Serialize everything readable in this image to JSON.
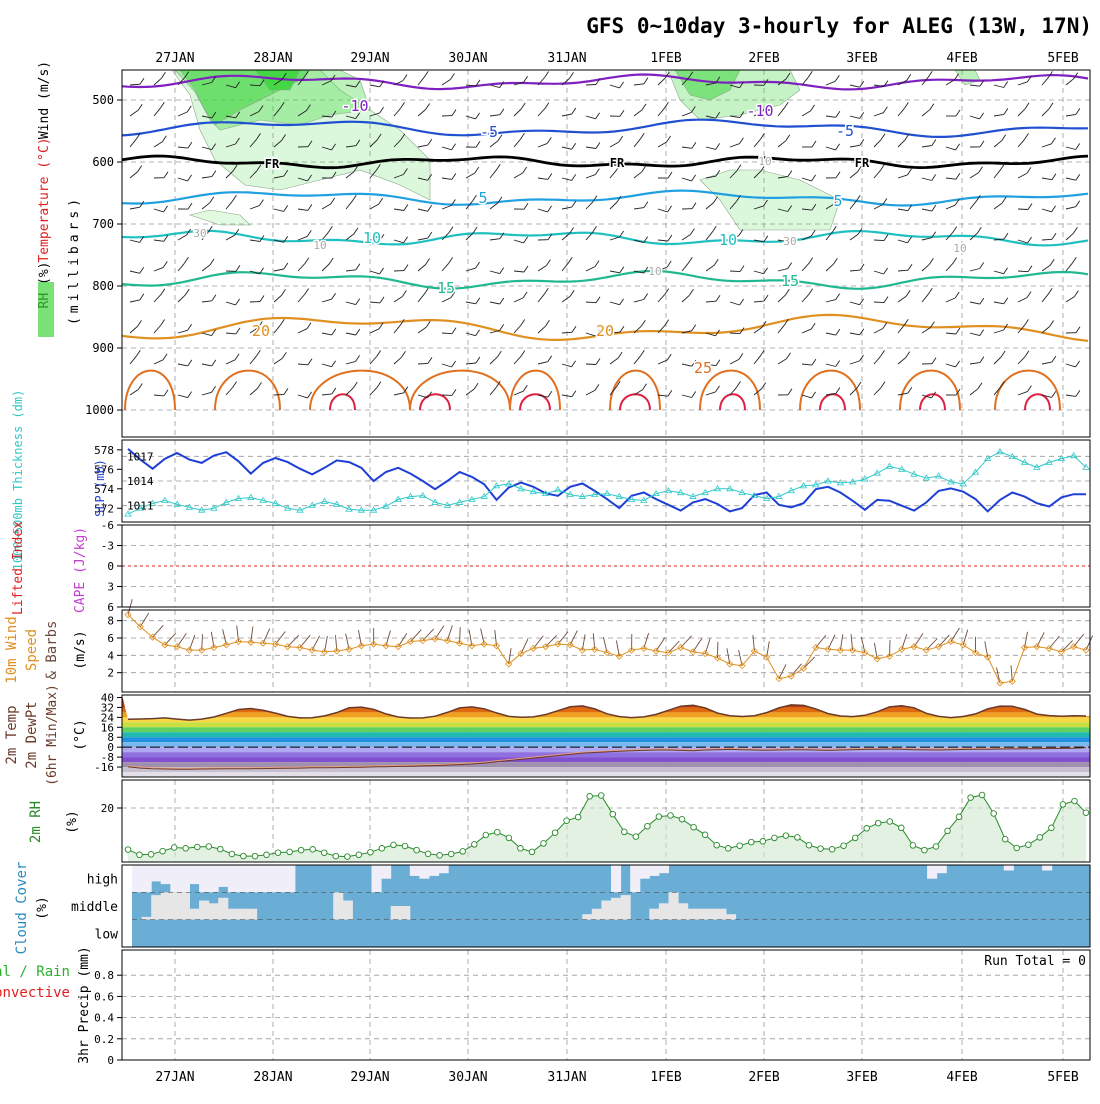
{
  "title": "GFS 0~10day 3-hourly for ALEG (13W, 17N)",
  "date_labels": [
    "27JAN",
    "28JAN",
    "29JAN",
    "30JAN",
    "31JAN",
    "1FEB",
    "2FEB",
    "3FEB",
    "4FEB",
    "5FEB"
  ],
  "colors": {
    "grid": "#999999",
    "rh_green": "#3fd63f",
    "slp": "#1e3fd6",
    "thickness": "#2fc8c8",
    "wind10m": "#e09020",
    "temp": "#6b3a2a",
    "rh2m": "#2a8a2a",
    "cloud_bg": "#6aaed6",
    "cloud_fill": "#f0eef8",
    "cloud_mid": "#e6e6e6"
  },
  "panels": {
    "upper": {
      "ylabel_rh": "RH (%)",
      "ylabel_temp": "Temperature (°C)",
      "ylabel_wind": "Wind (m/s)",
      "ylabel_press": "(millibars)",
      "pressure_ticks": [
        "500",
        "600",
        "700",
        "800",
        "900",
        "1000"
      ],
      "contour_labels": [
        {
          "text": "-10",
          "color": "#8020c0"
        },
        {
          "text": "-10",
          "color": "#8020c0"
        },
        {
          "text": "-5",
          "color": "#2050d0"
        },
        {
          "text": "-5",
          "color": "#2050d0"
        },
        {
          "text": "FR",
          "color": "#000000"
        },
        {
          "text": "FR",
          "color": "#000000"
        },
        {
          "text": "FR",
          "color": "#000000"
        },
        {
          "text": "5",
          "color": "#20a0e0"
        },
        {
          "text": "5",
          "color": "#20a0e0"
        },
        {
          "text": "10",
          "color": "#20c0c0"
        },
        {
          "text": "10",
          "color": "#20c0c0"
        },
        {
          "text": "15",
          "color": "#20b890"
        },
        {
          "text": "15",
          "color": "#20b890"
        },
        {
          "text": "20",
          "color": "#e09020"
        },
        {
          "text": "20",
          "color": "#e09020"
        },
        {
          "text": "25",
          "color": "#e07020"
        },
        {
          "text": "30",
          "color": "#aaaaaa"
        },
        {
          "text": "30",
          "color": "#aaaaaa"
        },
        {
          "text": "10",
          "color": "#aaaaaa"
        },
        {
          "text": "10",
          "color": "#aaaaaa"
        },
        {
          "text": "10",
          "color": "#aaaaaa"
        },
        {
          "text": "10",
          "color": "#aaaaaa"
        }
      ]
    },
    "thickness": {
      "ylabel_thick": "1000~500mb Thickness (dm)",
      "ylabel_slp": "SLP (mb)",
      "left_ticks": [
        "578",
        "576",
        "574",
        "572"
      ],
      "right_ticks": [
        "1017",
        "1014",
        "1011"
      ]
    },
    "cape": {
      "ylabel_li": "Lifted Index",
      "ylabel_cape": "CAPE (J/kg)",
      "ticks": [
        "-6",
        "-3",
        "0",
        "3",
        "6"
      ]
    },
    "wind": {
      "ylabel_a": "10m Wind",
      "ylabel_b": "Speed",
      "ylabel_c": "& Barbs",
      "ylabel_units": "(m/s)",
      "ticks": [
        "8",
        "6",
        "4",
        "2"
      ]
    },
    "temp2m": {
      "ylabel_a": "2m Temp",
      "ylabel_b": "2m DewPt",
      "ylabel_c": "(6hr Min/Max)",
      "ylabel_units": "(°C)",
      "ticks": [
        "40",
        "32",
        "24",
        "16",
        "8",
        "0",
        "-8",
        "-16"
      ]
    },
    "rh2m": {
      "ylabel": "2m RH",
      "ylabel_units": "(%)",
      "ticks": [
        "20"
      ]
    },
    "cloud": {
      "ylabel": "Cloud Cover",
      "ylabel_units": "(%)",
      "levels": [
        "high",
        "middle",
        "low"
      ]
    },
    "precip": {
      "ylabel_a": "Total / Rain",
      "ylabel_b": "Convective",
      "ylabel_c": "3hr Precip (mm)",
      "ticks": [
        "0.8",
        "0.6",
        "0.4",
        "0.2",
        "0"
      ],
      "run_total": "Run Total = 0"
    }
  },
  "chart_data": [
    {
      "type": "line",
      "name": "slp_and_thickness",
      "series": [
        {
          "name": "SLP (mb)",
          "values": [
            1017.9,
            1016.6,
            1015.5,
            1016.7,
            1017.4,
            1016.6,
            1016.2,
            1017.1,
            1017.5,
            1016.4,
            1014.9,
            1016.2,
            1016.8,
            1016.3,
            1015.5,
            1014.8,
            1015.6,
            1016.5,
            1016.3,
            1015.6,
            1014.0,
            1015.1,
            1015.6,
            1014.9,
            1014.0,
            1013.0,
            1014.0,
            1015.1,
            1014.5,
            1013.6,
            1011.7,
            1013.2,
            1013.8,
            1013.3,
            1012.5,
            1012.2,
            1013.3,
            1013.7,
            1012.8,
            1011.8,
            1010.7,
            1012.2,
            1012.6,
            1011.8,
            1011.1,
            1010.4,
            1011.4,
            1011.8,
            1011.2,
            1010.3,
            1010.7,
            1012.3,
            1012.6,
            1011.1,
            1010.8,
            1011.3,
            1013.0,
            1013.3,
            1012.6,
            1011.6,
            1010.5,
            1011.7,
            1011.6,
            1011.0,
            1010.4,
            1011.4,
            1012.8,
            1013.1,
            1012.7,
            1011.8,
            1010.3,
            1011.7,
            1012.6,
            1012.1,
            1011.3,
            1010.9,
            1012.0,
            1012.4,
            1012.4
          ]
        },
        {
          "name": "Thickness (dm)",
          "values": [
            571.4,
            572.0,
            572.5,
            572.8,
            572.4,
            572.1,
            571.8,
            572.0,
            572.6,
            573.0,
            573.1,
            572.8,
            572.5,
            572.0,
            571.8,
            572.3,
            572.7,
            572.4,
            571.9,
            571.8,
            571.8,
            572.2,
            572.9,
            573.2,
            573.3,
            572.6,
            572.3,
            572.6,
            572.9,
            573.2,
            574.3,
            574.5,
            574.0,
            573.7,
            573.5,
            573.9,
            573.4,
            573.2,
            573.4,
            573.5,
            573.2,
            572.9,
            572.8,
            573.5,
            573.8,
            573.6,
            573.2,
            573.6,
            574.0,
            574.0,
            573.6,
            573.3,
            573.0,
            573.2,
            573.8,
            574.3,
            574.4,
            574.8,
            574.6,
            574.7,
            575.0,
            575.6,
            576.3,
            576.0,
            575.5,
            575.1,
            575.3,
            574.7,
            574.5,
            575.7,
            577.1,
            577.8,
            577.3,
            576.7,
            576.2,
            576.7,
            577.1,
            577.4,
            576.2
          ]
        }
      ]
    },
    {
      "type": "line",
      "name": "wind_speed_10m",
      "values": [
        8.7,
        7.3,
        6.1,
        5.2,
        5.0,
        4.6,
        4.6,
        4.9,
        5.2,
        5.6,
        5.5,
        5.4,
        5.3,
        5.0,
        4.9,
        4.6,
        4.4,
        4.5,
        4.7,
        5.1,
        5.3,
        5.1,
        5.0,
        5.6,
        5.7,
        5.9,
        5.7,
        5.4,
        5.1,
        5.3,
        5.1,
        3.0,
        4.2,
        4.8,
        5.0,
        5.3,
        5.2,
        4.6,
        4.7,
        4.3,
        3.9,
        4.6,
        4.8,
        4.5,
        4.3,
        4.9,
        4.4,
        4.2,
        3.7,
        3.0,
        2.8,
        4.5,
        3.8,
        1.3,
        1.6,
        2.5,
        4.9,
        4.7,
        4.6,
        4.6,
        4.3,
        3.6,
        3.9,
        4.7,
        5.0,
        4.6,
        5.0,
        5.6,
        5.2,
        4.3,
        3.8,
        0.8,
        1.0,
        4.9,
        5.0,
        4.8,
        4.4,
        5.0,
        4.6
      ]
    },
    {
      "type": "area",
      "name": "temp_2m",
      "values": [
        22.5,
        22.7,
        23.0,
        23.6,
        22.6,
        21.8,
        22.6,
        24.3,
        27.3,
        30.3,
        31.1,
        29.7,
        27.4,
        24.8,
        23.6,
        23.7,
        25.2,
        27.8,
        31.7,
        32.3,
        30.5,
        26.8,
        24.3,
        23.5,
        23.6,
        24.9,
        28.0,
        31.6,
        32.4,
        30.9,
        27.6,
        24.8,
        24.1,
        24.4,
        26.2,
        29.4,
        32.5,
        33.2,
        30.8,
        26.9,
        24.6,
        23.8,
        24.4,
        26.4,
        29.6,
        33.0,
        33.8,
        31.5,
        27.4,
        25.3,
        24.7,
        25.3,
        27.8,
        31.6,
        34.0,
        33.6,
        30.8,
        27.0,
        25.1,
        24.6,
        25.7,
        28.5,
        32.4,
        33.3,
        31.7,
        27.3,
        24.8,
        23.8,
        24.7,
        26.8,
        30.8,
        33.1,
        32.9,
        30.4,
        26.6,
        25.4,
        24.9,
        25.3,
        25.1
      ]
    },
    {
      "type": "line",
      "name": "dewpoint_2m",
      "values": [
        -15.0,
        -16.0,
        -16.5,
        -16.8,
        -17.0,
        -16.9,
        -16.8,
        -16.7,
        -16.6,
        -16.5,
        -16.5,
        -16.4,
        -16.3,
        -16.2,
        -16.0,
        -15.8,
        -15.7,
        -15.6,
        -15.5,
        -15.3,
        -15.1,
        -14.9,
        -14.7,
        -14.5,
        -14.3,
        -14.0,
        -13.6,
        -13.2,
        -12.7,
        -12.0,
        -11.0,
        -10.0,
        -9.0,
        -8.0,
        -7.0,
        -6.0,
        -5.0,
        -4.0,
        -3.5,
        -3.0,
        -2.5,
        -2.0,
        -1.8,
        -1.5,
        -1.5,
        -1.8,
        -2.0,
        -1.5,
        -1.2,
        -1.0,
        -1.2,
        -1.5,
        -1.7,
        -1.5,
        -1.3,
        -1.2,
        -1.5,
        -1.8,
        -1.5,
        -1.3,
        -1.0,
        -0.8,
        -0.7,
        -0.9,
        -1.2,
        -1.4,
        -1.5,
        -1.3,
        -1.1,
        -0.9,
        -0.8,
        -0.7,
        -0.6,
        -0.5,
        -0.4,
        -0.3,
        -0.2,
        -0.1,
        0.5
      ]
    },
    {
      "type": "area",
      "name": "rh_2m",
      "values": [
        4.0,
        2.0,
        2.2,
        3.4,
        4.8,
        4.5,
        5.0,
        5.2,
        4.2,
        2.3,
        1.5,
        1.5,
        2.0,
        2.8,
        3.1,
        3.8,
        4.1,
        2.8,
        1.5,
        1.3,
        2.0,
        3.0,
        4.5,
        5.8,
        5.4,
        3.8,
        2.4,
        1.8,
        2.3,
        3.3,
        6.0,
        9.6,
        10.7,
        8.5,
        4.5,
        3.1,
        6.4,
        10.5,
        15.1,
        16.5,
        24.5,
        24.8,
        17.6,
        10.8,
        9.0,
        13.0,
        16.7,
        17.1,
        15.7,
        12.6,
        9.7,
        5.7,
        4.5,
        5.5,
        6.9,
        7.2,
        8.5,
        9.4,
        8.7,
        5.7,
        4.4,
        4.1,
        5.5,
        8.5,
        12.2,
        14.2,
        14.8,
        12.4,
        5.6,
        3.8,
        5.2,
        11.2,
        16.6,
        24.0,
        25.0,
        17.9,
        8.0,
        4.6,
        5.9,
        8.7,
        12.4,
        21.4,
        22.7,
        18.2
      ]
    },
    {
      "type": "bar",
      "name": "cloud_cover",
      "series": [
        {
          "name": "high",
          "values": [
            100,
            100,
            60,
            70,
            100,
            100,
            70,
            100,
            100,
            80,
            100,
            100,
            100,
            100,
            100,
            100,
            100,
            0,
            0,
            0,
            0,
            0,
            0,
            0,
            0,
            100,
            50,
            0,
            0,
            40,
            50,
            40,
            30,
            0,
            0,
            0,
            0,
            0,
            0,
            0,
            0,
            0,
            0,
            0,
            0,
            0,
            0,
            0,
            0,
            0,
            100,
            0,
            100,
            50,
            40,
            30,
            0,
            0,
            0,
            0,
            0,
            0,
            0,
            0,
            0,
            0,
            0,
            0,
            0,
            0,
            0,
            0,
            0,
            0,
            0,
            0,
            0,
            0,
            0,
            0,
            0,
            0,
            0,
            50,
            30,
            0,
            0,
            0,
            0,
            0,
            0,
            20,
            0,
            0,
            0,
            20,
            0,
            0,
            0,
            0
          ]
        },
        {
          "name": "middle",
          "values": [
            0,
            10,
            90,
            100,
            100,
            100,
            40,
            70,
            60,
            80,
            40,
            40,
            40,
            0,
            0,
            0,
            0,
            0,
            0,
            0,
            0,
            100,
            70,
            0,
            0,
            0,
            0,
            50,
            50,
            0,
            0,
            0,
            0,
            0,
            0,
            0,
            0,
            0,
            0,
            0,
            0,
            0,
            0,
            0,
            0,
            0,
            0,
            20,
            40,
            70,
            80,
            90,
            0,
            0,
            40,
            60,
            100,
            60,
            40,
            40,
            40,
            40,
            20,
            0,
            0,
            0,
            0,
            0,
            0,
            0,
            0,
            0,
            0,
            0,
            0,
            0,
            0,
            0,
            0,
            0,
            0,
            0,
            0,
            0,
            0,
            0,
            0,
            0,
            0,
            0,
            0,
            0,
            0,
            0,
            0,
            0,
            0,
            0,
            0,
            0
          ]
        },
        {
          "name": "low",
          "values": [
            0,
            0,
            0,
            0,
            0,
            0,
            0,
            0,
            0,
            0,
            0,
            0,
            0,
            0,
            0,
            0,
            0,
            0,
            0,
            0,
            0,
            0,
            0,
            0,
            0,
            0,
            0,
            0,
            0,
            0,
            0,
            0,
            0,
            0,
            0,
            0,
            0,
            0,
            0,
            0,
            0,
            0,
            0,
            0,
            0,
            0,
            0,
            0,
            0,
            0,
            0,
            0,
            0,
            0,
            0,
            0,
            0,
            0,
            0,
            0,
            0,
            0,
            0,
            0,
            0,
            0,
            0,
            0,
            0,
            0,
            0,
            0,
            0,
            0,
            0,
            0,
            0,
            0,
            0,
            0,
            0,
            0,
            0,
            0,
            0,
            0,
            0,
            0,
            0,
            0,
            0,
            0,
            0,
            0,
            0,
            0,
            0,
            0,
            0,
            0
          ]
        }
      ]
    },
    {
      "type": "bar",
      "name": "precip_3hr",
      "ylim": [
        0,
        1
      ],
      "values": []
    }
  ]
}
